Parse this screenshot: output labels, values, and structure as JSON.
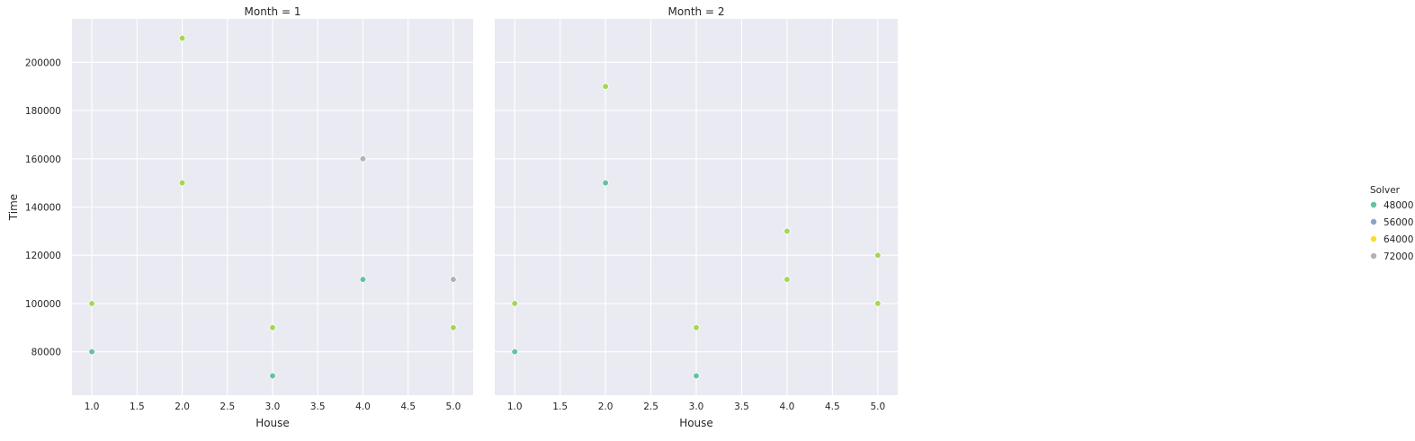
{
  "chart_data": {
    "type": "scatter",
    "facet_label": "Month",
    "xlabel": "House",
    "ylabel": "Time",
    "xlim": [
      0.78,
      5.22
    ],
    "ylim": [
      62000,
      218000
    ],
    "x_ticks": [
      "1.0",
      "1.5",
      "2.0",
      "2.5",
      "3.0",
      "3.5",
      "4.0",
      "4.5",
      "5.0"
    ],
    "y_ticks": [
      "80000",
      "100000",
      "120000",
      "140000",
      "160000",
      "180000",
      "200000"
    ],
    "grid": true,
    "legend": {
      "title": "Solver",
      "placement": "right",
      "entries": [
        {
          "label": "48000",
          "color": "#66c2a5"
        },
        {
          "label": "56000",
          "color": "#8da0cb"
        },
        {
          "label": "64000",
          "color": "#ffd92f"
        },
        {
          "label": "72000",
          "color": "#b3b3b3"
        }
      ]
    },
    "panels": [
      {
        "title": "Month = 1",
        "points": [
          {
            "x": 1,
            "y": 80000,
            "color": "#66c2a5"
          },
          {
            "x": 1,
            "y": 100000,
            "color": "#a6d854"
          },
          {
            "x": 2,
            "y": 150000,
            "color": "#a6d854"
          },
          {
            "x": 2,
            "y": 210000,
            "color": "#a6d854"
          },
          {
            "x": 3,
            "y": 70000,
            "color": "#66c2a5"
          },
          {
            "x": 3,
            "y": 90000,
            "color": "#a6d854"
          },
          {
            "x": 4,
            "y": 110000,
            "color": "#66c2a5"
          },
          {
            "x": 4,
            "y": 160000,
            "color": "#b3b3b3"
          },
          {
            "x": 5,
            "y": 90000,
            "color": "#a6d854"
          },
          {
            "x": 5,
            "y": 110000,
            "color": "#b3b3b3"
          }
        ]
      },
      {
        "title": "Month = 2",
        "points": [
          {
            "x": 1,
            "y": 80000,
            "color": "#66c2a5"
          },
          {
            "x": 1,
            "y": 100000,
            "color": "#a6d854"
          },
          {
            "x": 2,
            "y": 150000,
            "color": "#66c2a5"
          },
          {
            "x": 2,
            "y": 190000,
            "color": "#a6d854"
          },
          {
            "x": 3,
            "y": 70000,
            "color": "#66c2a5"
          },
          {
            "x": 3,
            "y": 90000,
            "color": "#a6d854"
          },
          {
            "x": 4,
            "y": 110000,
            "color": "#a6d854"
          },
          {
            "x": 4,
            "y": 130000,
            "color": "#a6d854"
          },
          {
            "x": 5,
            "y": 100000,
            "color": "#a6d854"
          },
          {
            "x": 5,
            "y": 120000,
            "color": "#a6d854"
          }
        ]
      }
    ]
  }
}
